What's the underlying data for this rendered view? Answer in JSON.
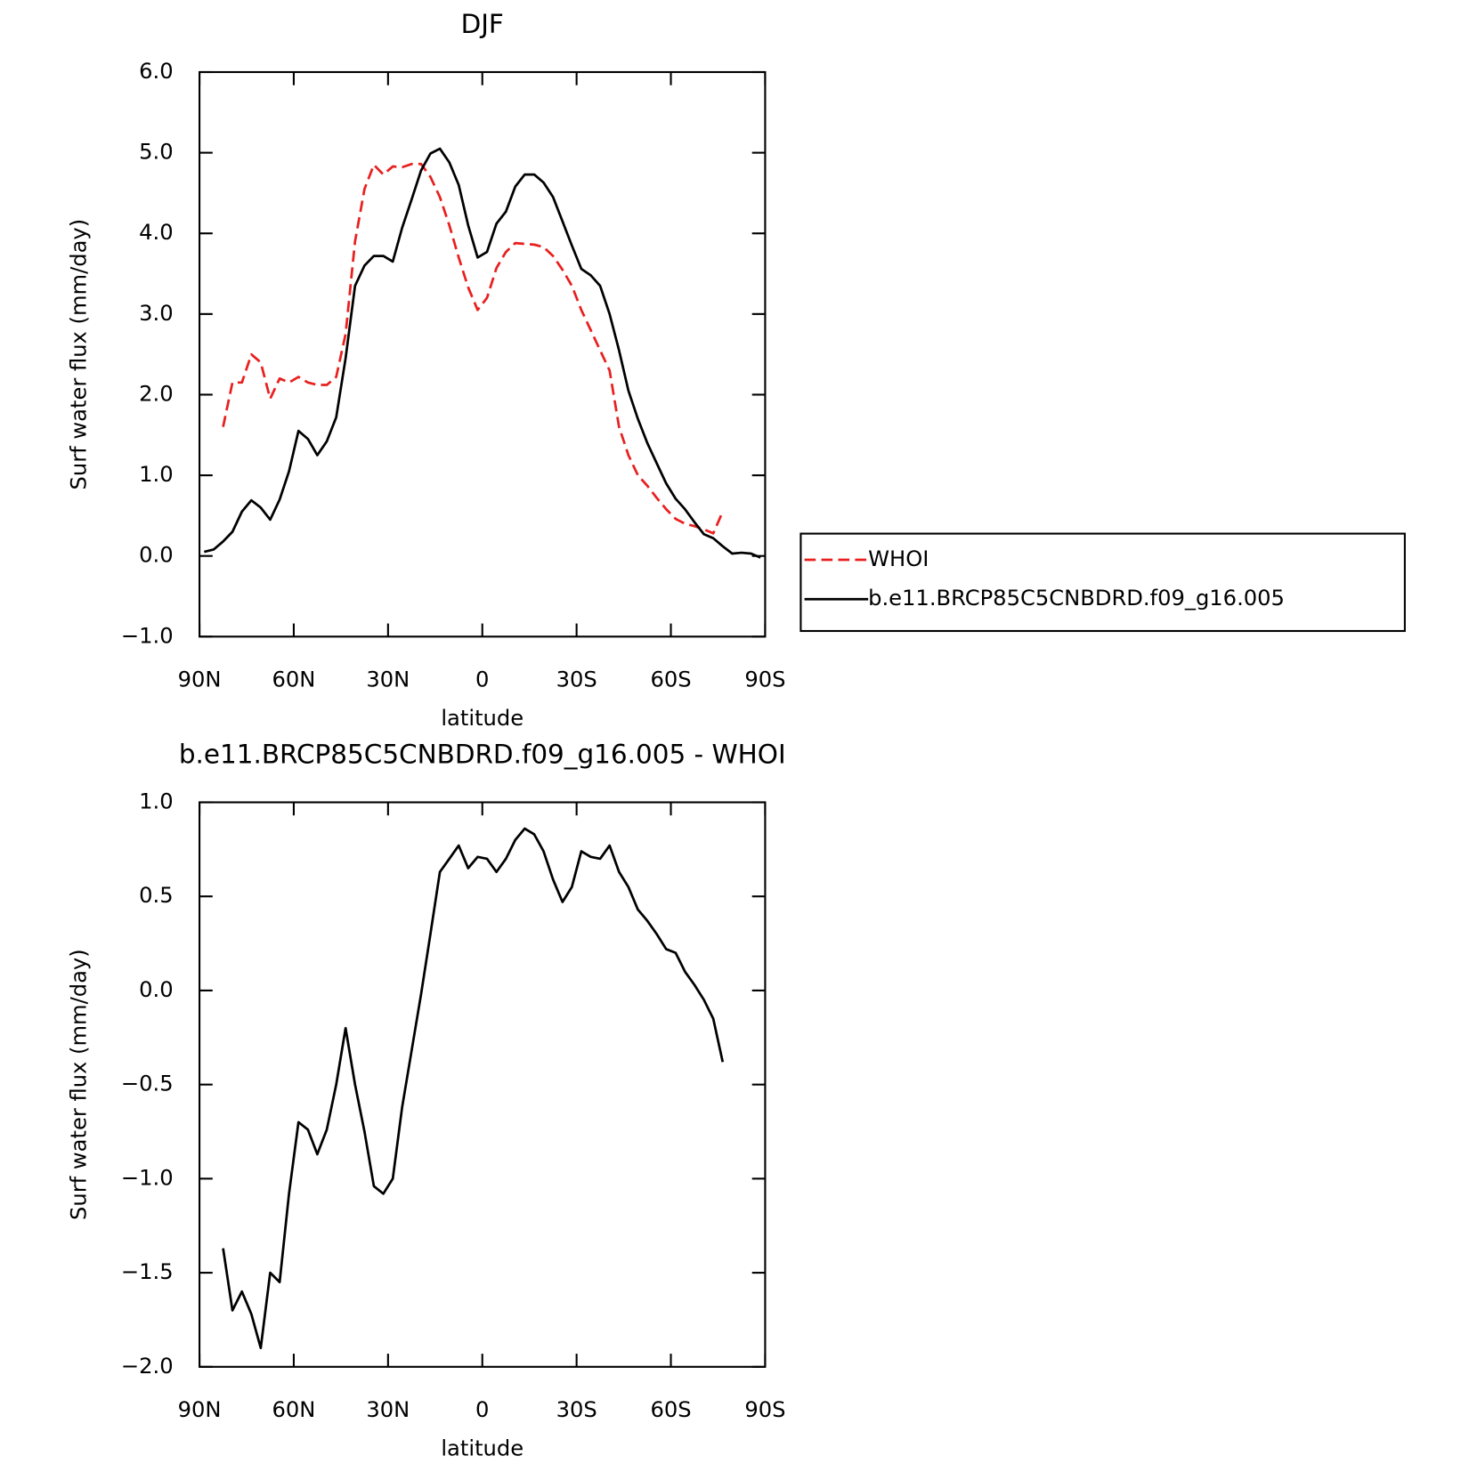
{
  "chart_data": [
    {
      "type": "line",
      "title": "DJF",
      "xlabel": "latitude",
      "ylabel": "Surf water flux (mm/day)",
      "xlim": [
        90,
        -90
      ],
      "xticks": [
        {
          "value": 90,
          "label": "90N"
        },
        {
          "value": 60,
          "label": "60N"
        },
        {
          "value": 30,
          "label": "30N"
        },
        0,
        {
          "value": -30,
          "label": "30S"
        },
        {
          "value": -60,
          "label": "60S"
        },
        {
          "value": -90,
          "label": "90S"
        }
      ],
      "ylim": [
        -1,
        6
      ],
      "yticks": [
        {
          "value": -1,
          "label": "−1.0"
        },
        {
          "value": 0,
          "label": "0.0"
        },
        {
          "value": 1,
          "label": "1.0"
        },
        {
          "value": 2,
          "label": "2.0"
        },
        {
          "value": 3,
          "label": "3.0"
        },
        {
          "value": 4,
          "label": "4.0"
        },
        {
          "value": 5,
          "label": "5.0"
        },
        {
          "value": 6,
          "label": "6.0"
        }
      ],
      "legend": "right",
      "x": [
        88.5,
        85.5,
        82.5,
        79.5,
        76.5,
        73.5,
        70.5,
        67.5,
        64.5,
        61.5,
        58.5,
        55.5,
        52.5,
        49.5,
        46.5,
        43.5,
        40.5,
        37.5,
        34.5,
        31.5,
        28.5,
        25.5,
        22.5,
        19.5,
        16.5,
        13.5,
        10.5,
        7.5,
        4.5,
        1.5,
        -1.5,
        -4.5,
        -7.5,
        -10.5,
        -13.5,
        -16.5,
        -19.5,
        -22.5,
        -25.5,
        -28.5,
        -31.5,
        -34.5,
        -37.5,
        -40.5,
        -43.5,
        -46.5,
        -49.5,
        -52.5,
        -55.5,
        -58.5,
        -61.5,
        -64.5,
        -67.5,
        -70.5,
        -73.5,
        -76.5,
        -79.5,
        -82.5,
        -85.5,
        -88.5
      ],
      "series": [
        {
          "name": "WHOI",
          "color": "#e8201f",
          "dashed": true,
          "values": [
            null,
            null,
            1.6,
            2.15,
            2.15,
            2.5,
            2.4,
            1.95,
            2.2,
            2.15,
            2.22,
            2.15,
            2.12,
            2.12,
            2.22,
            2.75,
            3.9,
            4.55,
            4.85,
            4.73,
            4.83,
            4.82,
            4.86,
            4.86,
            4.7,
            4.45,
            4.1,
            3.7,
            3.33,
            3.05,
            3.2,
            3.57,
            3.77,
            3.88,
            3.87,
            3.86,
            3.83,
            3.72,
            3.55,
            3.35,
            3.05,
            2.8,
            2.55,
            2.3,
            1.6,
            1.25,
            1.0,
            0.87,
            0.72,
            0.58,
            0.46,
            0.4,
            0.37,
            0.33,
            0.28,
            0.55,
            null,
            null,
            null,
            null
          ]
        },
        {
          "name": "b.e11.BRCP85C5CNBDRD.f09_g16.005",
          "color": "#000000",
          "dashed": false,
          "values": [
            0.05,
            0.08,
            0.18,
            0.3,
            0.55,
            0.69,
            0.6,
            0.45,
            0.7,
            1.05,
            1.55,
            1.45,
            1.25,
            1.42,
            1.72,
            2.45,
            3.35,
            3.6,
            3.72,
            3.72,
            3.65,
            4.07,
            4.42,
            4.78,
            4.99,
            5.05,
            4.88,
            4.6,
            4.1,
            3.7,
            3.77,
            4.12,
            4.27,
            4.58,
            4.73,
            4.73,
            4.63,
            4.45,
            4.15,
            3.85,
            3.56,
            3.48,
            3.35,
            3.0,
            2.55,
            2.05,
            1.7,
            1.4,
            1.15,
            0.9,
            0.71,
            0.58,
            0.42,
            0.27,
            0.22,
            0.12,
            0.03,
            0.04,
            0.03,
            -0.02
          ]
        }
      ]
    },
    {
      "type": "line",
      "title": "b.e11.BRCP85C5CNBDRD.f09_g16.005 - WHOI",
      "xlabel": "latitude",
      "ylabel": "Surf water flux (mm/day)",
      "xlim": [
        90,
        -90
      ],
      "xticks": [
        {
          "value": 90,
          "label": "90N"
        },
        {
          "value": 60,
          "label": "60N"
        },
        {
          "value": 30,
          "label": "30N"
        },
        0,
        {
          "value": -30,
          "label": "30S"
        },
        {
          "value": -60,
          "label": "60S"
        },
        {
          "value": -90,
          "label": "90S"
        }
      ],
      "ylim": [
        -2,
        1
      ],
      "yticks": [
        {
          "value": -2,
          "label": "−2.0"
        },
        {
          "value": -1.5,
          "label": "−1.5"
        },
        {
          "value": -1,
          "label": "−1.0"
        },
        {
          "value": -0.5,
          "label": "−0.5"
        },
        {
          "value": 0,
          "label": "0.0"
        },
        {
          "value": 0.5,
          "label": "0.5"
        },
        {
          "value": 1,
          "label": "1.0"
        }
      ],
      "x": [
        88.5,
        85.5,
        82.5,
        79.5,
        76.5,
        73.5,
        70.5,
        67.5,
        64.5,
        61.5,
        58.5,
        55.5,
        52.5,
        49.5,
        46.5,
        43.5,
        40.5,
        37.5,
        34.5,
        31.5,
        28.5,
        25.5,
        22.5,
        19.5,
        16.5,
        13.5,
        10.5,
        7.5,
        4.5,
        1.5,
        -1.5,
        -4.5,
        -7.5,
        -10.5,
        -13.5,
        -16.5,
        -19.5,
        -22.5,
        -25.5,
        -28.5,
        -31.5,
        -34.5,
        -37.5,
        -40.5,
        -43.5,
        -46.5,
        -49.5,
        -52.5,
        -55.5,
        -58.5,
        -61.5,
        -64.5,
        -67.5,
        -70.5,
        -73.5,
        -76.5,
        -79.5,
        -82.5,
        -85.5,
        -88.5
      ],
      "series": [
        {
          "color": "#000000",
          "dashed": false,
          "values": [
            null,
            null,
            -1.37,
            -1.7,
            -1.6,
            -1.72,
            -1.9,
            -1.5,
            -1.55,
            -1.08,
            -0.7,
            -0.74,
            -0.87,
            -0.74,
            -0.5,
            -0.2,
            -0.5,
            -0.75,
            -1.04,
            -1.08,
            -1.0,
            -0.62,
            -0.32,
            -0.02,
            0.3,
            0.63,
            0.7,
            0.77,
            0.65,
            0.71,
            0.7,
            0.63,
            0.7,
            0.8,
            0.86,
            0.83,
            0.74,
            0.59,
            0.47,
            0.55,
            0.74,
            0.71,
            0.7,
            0.77,
            0.63,
            0.55,
            0.43,
            0.37,
            0.3,
            0.22,
            0.2,
            0.1,
            0.03,
            -0.05,
            -0.15,
            -0.38,
            null,
            null,
            null,
            null
          ]
        }
      ]
    }
  ]
}
